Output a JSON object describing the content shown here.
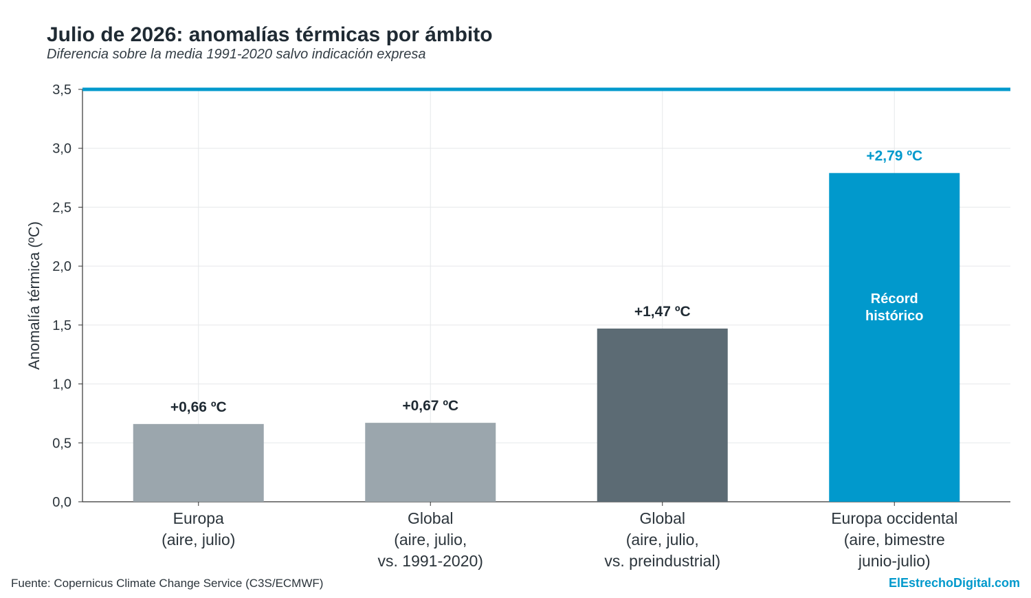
{
  "chart_data": {
    "type": "bar",
    "title": "Julio de 2026: anomalías térmicas por ámbito",
    "subtitle": "Diferencia sobre la media 1991-2020 salvo indicación expresa",
    "ylabel": "Anomalía térmica (ºC)",
    "ylim": [
      0,
      3.5
    ],
    "yticks": [
      "0,0",
      "0,5",
      "1,0",
      "1,5",
      "2,0",
      "2,5",
      "3,0",
      "3,5"
    ],
    "categories": [
      [
        "Europa",
        "(aire, julio)"
      ],
      [
        "Global",
        "(aire, julio,",
        "vs. 1991-2020)"
      ],
      [
        "Global",
        "(aire, julio,",
        "vs. preindustrial)"
      ],
      [
        "Europa occidental",
        "(aire, bimestre",
        "junio-julio)"
      ]
    ],
    "values": [
      0.66,
      0.67,
      1.47,
      2.79
    ],
    "value_labels": [
      "+0,66 ºC",
      "+0,67 ºC",
      "+1,47 ºC",
      "+2,79 ºC"
    ],
    "bar_colors": [
      "#9ba6ad",
      "#9ba6ad",
      "#5c6b74",
      "#0199cc"
    ],
    "label_colors": [
      "#1f2a33",
      "#1f2a33",
      "#1f2a33",
      "#0199cc"
    ],
    "inside_label": [
      "Récord",
      "histórico"
    ],
    "inside_label_bar": 3,
    "reference_line": 3.5,
    "reference_color": "#0199cc",
    "grid": true
  },
  "footer": {
    "source": "Fuente: Copernicus Climate Change Service (C3S/ECMWF)",
    "brand": "ElEstrechoDigital.com"
  }
}
